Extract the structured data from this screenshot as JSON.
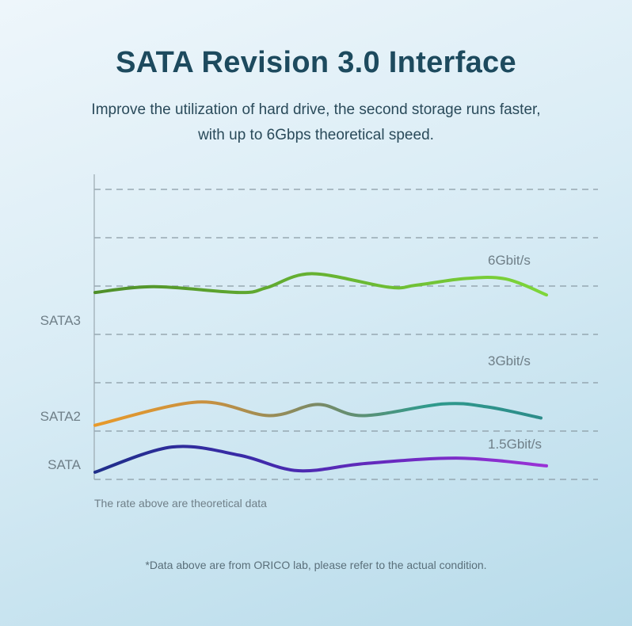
{
  "title": "SATA Revision 3.0 Interface",
  "subtitle_lines": [
    "Improve the utilization of hard drive, the second storage runs faster,",
    "with up to 6Gbps theoretical speed."
  ],
  "footnote": "*Data above are from ORICO lab, please refer to the actual condition.",
  "colors": {
    "title": "#1d4a5e",
    "grid": "#8a9ba5",
    "axis": "#9aa8b0",
    "label": "#6f7f88"
  },
  "chart_data": {
    "type": "line",
    "note": "The rate above are theoretical data",
    "grid": true,
    "series": [
      {
        "name": "SATA3",
        "rate_label": "6Gbit/s",
        "gradient": [
          "#4f8f2a",
          "#7ed63a"
        ],
        "x": [
          0,
          0.13,
          0.32,
          0.38,
          0.48,
          0.65,
          0.71,
          0.82,
          0.91,
          1.0
        ],
        "y": [
          0.85,
          0.97,
          0.85,
          0.95,
          1.24,
          0.96,
          1.0,
          1.14,
          1.13,
          0.8
        ]
      },
      {
        "name": "SATA2",
        "rate_label": "3Gbit/s",
        "gradient": [
          "#e89a2a",
          "#c89040",
          "#7a8a66",
          "#2f9a8c",
          "#2c8c8a"
        ],
        "x": [
          0,
          0.23,
          0.39,
          0.5,
          0.6,
          0.78,
          0.88,
          1.0
        ],
        "y": [
          0.12,
          0.6,
          0.32,
          0.55,
          0.32,
          0.56,
          0.5,
          0.27
        ]
      },
      {
        "name": "SATA",
        "rate_label": "1.5Gbit/s",
        "gradient": [
          "#1f2f8a",
          "#3a2aa8",
          "#6a2ac0",
          "#9a32d6"
        ],
        "x": [
          0,
          0.17,
          0.32,
          0.45,
          0.6,
          0.81,
          1.0
        ],
        "y": [
          0.15,
          0.67,
          0.5,
          0.18,
          0.33,
          0.44,
          0.28
        ]
      }
    ]
  }
}
